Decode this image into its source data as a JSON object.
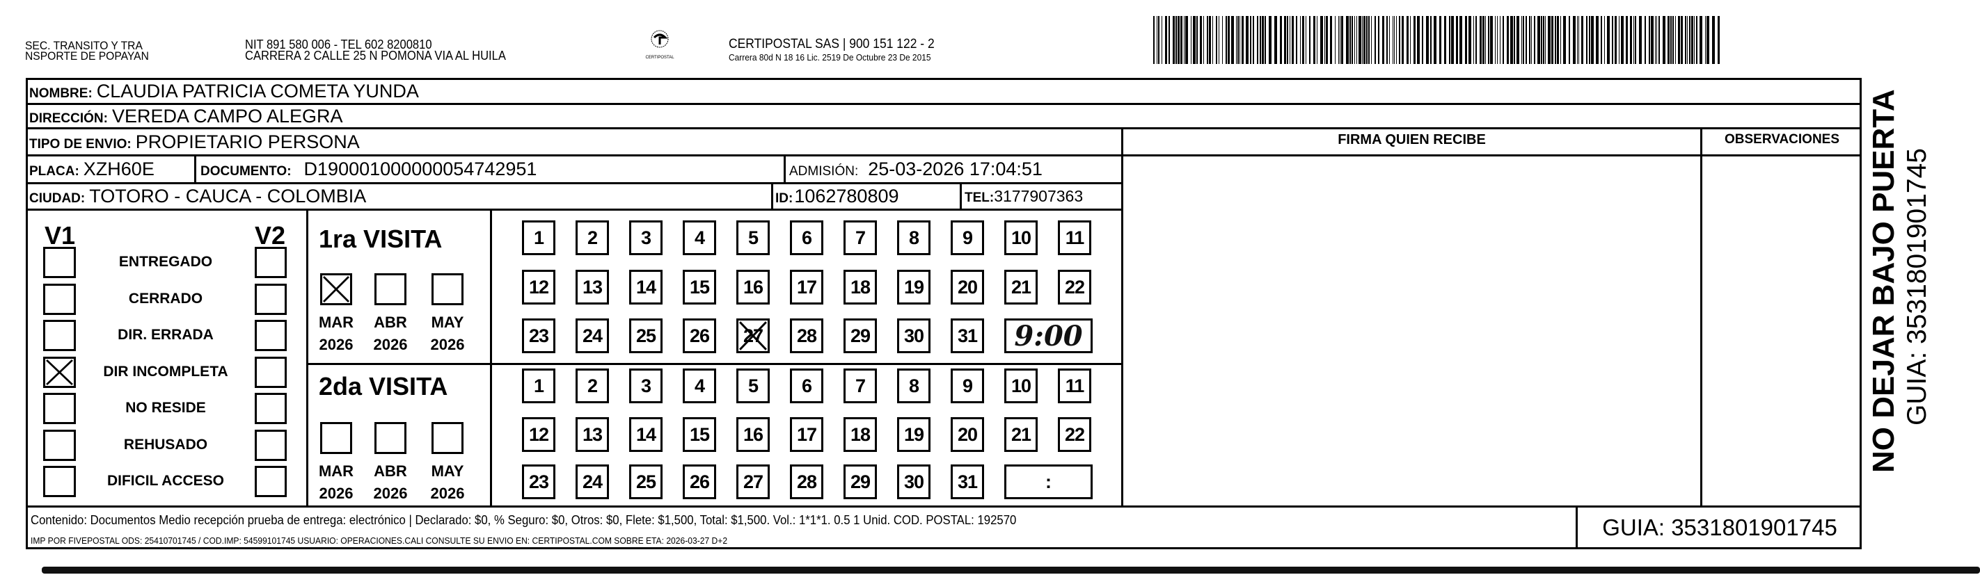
{
  "header": {
    "sender_line1": "SEC. TRANSITO Y TRA",
    "sender_line2": "NSPORTE DE POPAYAN",
    "nit_line": "NIT 891 580 006 - TEL 602 8200810",
    "address_line": "CARRERA 2 CALLE 25 N POMONA VIA AL HUILA",
    "logo_text": "CERTIPOSTAL",
    "company_line": "CERTIPOSTAL SAS | 900 151 122 - 2",
    "company_address": "Carrera 80d N 18 16  Lic. 2519 De Octubre 23 De 2015"
  },
  "recipient": {
    "nombre_label": "NOMBRE:",
    "nombre": "CLAUDIA PATRICIA COMETA YUNDA",
    "direccion_label": "DIRECCIÓN:",
    "direccion": "VEREDA CAMPO ALEGRA",
    "tipo_label": "TIPO DE ENVIO:",
    "tipo": "PROPIETARIO PERSONA",
    "placa_label": "PLACA:",
    "placa": "XZH60E",
    "documento_label": "DOCUMENTO:",
    "documento": "D190001000000054742951",
    "admision_label": "ADMISIÓN:",
    "admision": "25-03-2026 17:04:51",
    "ciudad_label": "CIUDAD:",
    "ciudad": "TOTORO - CAUCA - COLOMBIA",
    "id_label": "ID:",
    "id": "1062780809",
    "tel_label": "TEL:",
    "tel": "3177907363"
  },
  "columns": {
    "firma": "FIRMA QUIEN RECIBE",
    "observaciones": "OBSERVACIONES"
  },
  "status": {
    "v1_label": "V1",
    "v2_label": "V2",
    "items": [
      {
        "label": "ENTREGADO",
        "v1": false,
        "v2": false
      },
      {
        "label": "CERRADO",
        "v1": false,
        "v2": false
      },
      {
        "label": "DIR. ERRADA",
        "v1": false,
        "v2": false
      },
      {
        "label": "DIR INCOMPLETA",
        "v1": true,
        "v2": false
      },
      {
        "label": "NO RESIDE",
        "v1": false,
        "v2": false
      },
      {
        "label": "REHUSADO",
        "v1": false,
        "v2": false
      },
      {
        "label": "DIFICIL ACCESO",
        "v1": false,
        "v2": false
      }
    ]
  },
  "days": [
    1,
    2,
    3,
    4,
    5,
    6,
    7,
    8,
    9,
    10,
    11,
    12,
    13,
    14,
    15,
    16,
    17,
    18,
    19,
    20,
    21,
    22,
    23,
    24,
    25,
    26,
    27,
    28,
    29,
    30,
    31
  ],
  "visits": [
    {
      "title": "1ra VISITA",
      "months": [
        {
          "label": "MAR",
          "year": "2026",
          "checked": true
        },
        {
          "label": "ABR",
          "year": "2026",
          "checked": false
        },
        {
          "label": "MAY",
          "year": "2026",
          "checked": false
        }
      ],
      "marked_days": [
        27
      ],
      "time": "9:00",
      "time_handwritten": true
    },
    {
      "title": "2da VISITA",
      "months": [
        {
          "label": "MAR",
          "year": "2026",
          "checked": false
        },
        {
          "label": "ABR",
          "year": "2026",
          "checked": false
        },
        {
          "label": "MAY",
          "year": "2026",
          "checked": false
        }
      ],
      "marked_days": [],
      "time": ":",
      "time_handwritten": false
    }
  ],
  "footer": {
    "line1": "Contenido: Documentos Medio recepción prueba de entrega: electrónico | Declarado: $0, % Seguro: $0, Otros: $0, Flete: $1,500, Total: $1,500. Vol.: 1*1*1. 0.5  1 Unid. COD. POSTAL: 192570",
    "line2": "IMP POR FIVEPOSTAL ODS: 25410701745 / COD.IMP: 54599101745 USUARIO: OPERACIONES.CALI CONSULTE SU ENVIO EN: CERTIPOSTAL.COM SOBRE ETA: 2026-03-27 D+2",
    "guia": "GUIA: 3531801901745"
  },
  "side": {
    "warning": "NO DEJAR BAJO PUERTA",
    "guia": "GUIA: 3531801901745"
  }
}
